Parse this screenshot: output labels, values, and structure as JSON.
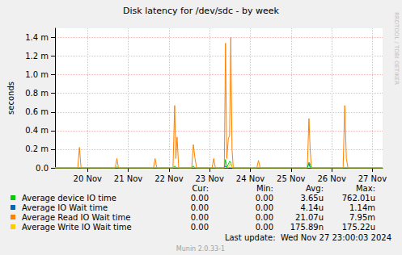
{
  "chart_data": {
    "type": "line",
    "title": "Disk latency for /dev/sdc - by week",
    "y_label": "seconds",
    "x": [
      19.2,
      19.76,
      19.8,
      19.84,
      20.68,
      20.72,
      20.76,
      21.62,
      21.66,
      21.7,
      22.1,
      22.14,
      22.17,
      22.2,
      22.24,
      22.56,
      22.6,
      22.64,
      22.68,
      23.06,
      23.1,
      23.14,
      23.36,
      23.39,
      23.42,
      23.46,
      23.49,
      23.52,
      23.55,
      23.58,
      24.16,
      24.2,
      24.24,
      25.4,
      25.44,
      25.47,
      25.5,
      26.28,
      26.32,
      26.36,
      26.4,
      27.25
    ],
    "xlim": [
      19.2,
      27.25
    ],
    "xticks": [
      {
        "value": 20,
        "label": "20 Nov"
      },
      {
        "value": 21,
        "label": "21 Nov"
      },
      {
        "value": 22,
        "label": "22 Nov"
      },
      {
        "value": 23,
        "label": "23 Nov"
      },
      {
        "value": 24,
        "label": "24 Nov"
      },
      {
        "value": 25,
        "label": "25 Nov"
      },
      {
        "value": 26,
        "label": "26 Nov"
      },
      {
        "value": 27,
        "label": "27 Nov"
      }
    ],
    "ylim": [
      0,
      0.0015
    ],
    "yticks": [
      {
        "value": 0,
        "label": "0.0"
      },
      {
        "value": 0.0002,
        "label": "0.2 m"
      },
      {
        "value": 0.0004,
        "label": "0.4 m"
      },
      {
        "value": 0.0006,
        "label": "0.6 m"
      },
      {
        "value": 0.0008,
        "label": "0.8 m"
      },
      {
        "value": 0.001,
        "label": "1.0 m"
      },
      {
        "value": 0.0012,
        "label": "1.2 m"
      },
      {
        "value": 0.0014,
        "label": "1.4 m"
      }
    ],
    "grid": true,
    "stats_columns": [
      "Cur:",
      "Min:",
      "Avg:",
      "Max:"
    ],
    "series": [
      {
        "name": "Average device IO time",
        "color": "#00cc00",
        "values": [
          0,
          0,
          0,
          0,
          0,
          1e-05,
          0,
          0,
          0,
          0,
          0,
          2e-05,
          0,
          0,
          0,
          0,
          2e-05,
          0,
          0,
          0,
          0,
          0,
          0,
          9e-05,
          0,
          4e-05,
          7e-05,
          6e-05,
          0,
          0,
          0,
          0,
          0,
          0,
          6e-05,
          4e-05,
          0,
          0,
          0,
          0,
          0,
          0
        ],
        "stats": [
          "0.00",
          "0.00",
          "3.65u",
          "762.01u"
        ]
      },
      {
        "name": "Average IO Wait time",
        "color": "#0066b3",
        "values": [
          0,
          0,
          0,
          0,
          0,
          0,
          0,
          0,
          0,
          0,
          0,
          0,
          0,
          0,
          0,
          0,
          0,
          0,
          0,
          0,
          0,
          0,
          0,
          2e-05,
          0,
          0,
          0,
          0,
          0,
          0,
          0,
          0,
          0,
          0,
          5e-05,
          0,
          0,
          0,
          0,
          0,
          0,
          0
        ],
        "stats": [
          "0.00",
          "0.00",
          "4.14u",
          "1.14m"
        ]
      },
      {
        "name": "Average Read IO Wait time",
        "color": "#ff8000",
        "values": [
          0,
          0,
          0.00022,
          0,
          0,
          0.0001,
          0,
          0,
          0.0001,
          0,
          0,
          0.00067,
          0.0001,
          0.00033,
          0,
          0,
          0.00025,
          0.0001,
          0,
          0,
          0.0001,
          0,
          0,
          0.00134,
          0.0001,
          0.00031,
          0.00035,
          0.0014,
          0.0002,
          0,
          0,
          8e-05,
          0,
          0,
          0.00053,
          0.0002,
          0,
          0,
          0.00067,
          0.0001,
          0,
          0
        ],
        "stats": [
          "0.00",
          "0.00",
          "21.07u",
          "7.95m"
        ]
      },
      {
        "name": "Average Write IO Wait time",
        "color": "#ffcc00",
        "values": [
          0,
          0,
          0,
          0,
          0,
          0,
          0,
          0,
          0,
          0,
          0,
          0,
          0,
          0,
          0,
          0,
          0,
          0,
          0,
          0,
          0,
          0,
          0,
          0,
          0,
          0,
          3e-05,
          5e-05,
          0,
          0,
          0,
          0,
          0,
          0,
          0,
          0,
          0,
          0,
          0,
          0,
          0,
          0
        ],
        "stats": [
          "0.00",
          "0.00",
          "175.89n",
          "175.22u"
        ]
      }
    ],
    "last_update": "Last update:  Wed Nov 27 23:00:03 2024",
    "footer": "Munin 2.0.33-1",
    "watermark": "RRDTOOL / TOBI OETIKER"
  }
}
